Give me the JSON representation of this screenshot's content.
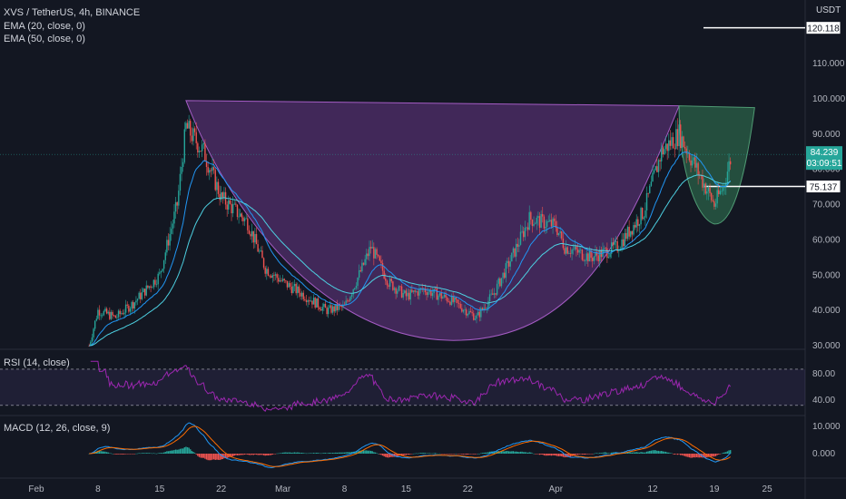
{
  "header": {
    "symbol_title": "XVS / TetherUS, 4h, BINANCE",
    "ema20_label": "EMA (20, close, 0)",
    "ema50_label": "EMA (50, close, 0)",
    "currency": "USDT"
  },
  "price_axis": {
    "ticks": [
      "110.000",
      "100.000",
      "90.000",
      "80.000",
      "70.000",
      "60.000",
      "50.000",
      "40.000",
      "30.000"
    ],
    "tick_values": [
      110,
      100,
      90,
      80,
      70,
      60,
      50,
      40,
      30
    ],
    "target_label": "120.118",
    "target_value": 120.118,
    "current_price": "84.239",
    "current_value": 84.239,
    "countdown": "03:09:51",
    "level_label": "75.137",
    "level_value": 75.137
  },
  "rsi": {
    "label": "RSI (14, close)",
    "ticks": [
      "80.00",
      "40.00"
    ],
    "tick_values": [
      80,
      40
    ]
  },
  "macd": {
    "label": "MACD (12, 26, close, 9)",
    "ticks": [
      "10.000",
      "0.000"
    ],
    "tick_values": [
      10,
      0
    ]
  },
  "time_axis": {
    "labels": [
      "Feb",
      "8",
      "15",
      "22",
      "Mar",
      "8",
      "15",
      "22",
      "Apr",
      "12",
      "19",
      "25"
    ]
  },
  "colors": {
    "background": "#131722",
    "up": "#26a69a",
    "down": "#ef5350",
    "ema20": "#2196f3",
    "ema50": "#4dd0e1",
    "cup_fill": "#7b3f9e",
    "handle_fill": "#2e6b4f",
    "rsi_line": "#9c27b0"
  },
  "chart_data": {
    "type": "candlestick",
    "title": "XVS / TetherUS, 4h, BINANCE",
    "ylim": [
      30,
      122
    ],
    "close_path": [
      [
        "Feb 7",
        30
      ],
      [
        "Feb 8",
        40
      ],
      [
        "Feb 10",
        38
      ],
      [
        "Feb 12",
        42
      ],
      [
        "Feb 15",
        50
      ],
      [
        "Feb 17",
        70
      ],
      [
        "Feb 18",
        92
      ],
      [
        "Feb 20",
        85
      ],
      [
        "Feb 22",
        72
      ],
      [
        "Feb 25",
        65
      ],
      [
        "Feb 27",
        52
      ],
      [
        "Mar 1",
        48
      ],
      [
        "Mar 3",
        45
      ],
      [
        "Mar 6",
        40
      ],
      [
        "Mar 8",
        41
      ],
      [
        "Mar 10",
        52
      ],
      [
        "Mar 11",
        58
      ],
      [
        "Mar 13",
        48
      ],
      [
        "Mar 15",
        44
      ],
      [
        "Mar 17",
        46
      ],
      [
        "Mar 20",
        43
      ],
      [
        "Mar 23",
        38
      ],
      [
        "Mar 25",
        45
      ],
      [
        "Mar 27",
        55
      ],
      [
        "Mar 29",
        66
      ],
      [
        "Apr 1",
        64
      ],
      [
        "Apr 2",
        58
      ],
      [
        "Apr 5",
        55
      ],
      [
        "Apr 8",
        58
      ],
      [
        "Apr 11",
        68
      ],
      [
        "Apr 13",
        85
      ],
      [
        "Apr 15",
        90
      ],
      [
        "Apr 17",
        80
      ],
      [
        "Apr 19",
        70
      ],
      [
        "Apr 20",
        75
      ],
      [
        "Apr 21",
        84.239
      ]
    ]
  }
}
